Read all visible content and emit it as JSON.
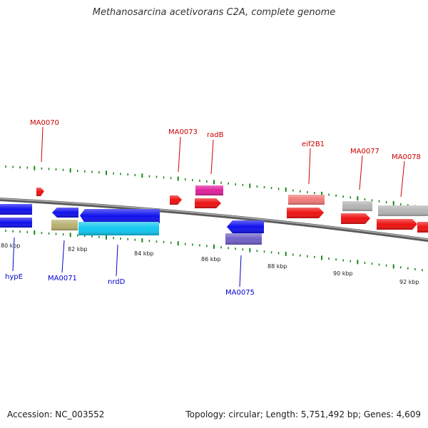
{
  "title": "Methanosarcina acetivorans C2A, complete genome",
  "footer": {
    "accession": "Accession: NC_003552",
    "summary": "Topology: circular; Length: 5,751,492 bp; Genes: 4,609"
  },
  "colors": {
    "backbone": "#808080",
    "tick": "#1a8a1a",
    "top_label": "#cc0000",
    "bottom_label": "#0000cc"
  },
  "scale_labels": [
    "80 kbp",
    "82 kbp",
    "84 kbp",
    "86 kbp",
    "88 kbp",
    "90 kbp",
    "92 kbp"
  ],
  "gene_labels": {
    "ma0070": "MA0070",
    "ma0073": "MA0073",
    "radb": "radB",
    "eif2b1": "eif2B1",
    "ma0077": "MA0077",
    "ma0078": "MA0078",
    "hype": "hypE",
    "ma0071": "MA0071",
    "nrdd": "nrdD",
    "ma0075": "MA0075"
  }
}
